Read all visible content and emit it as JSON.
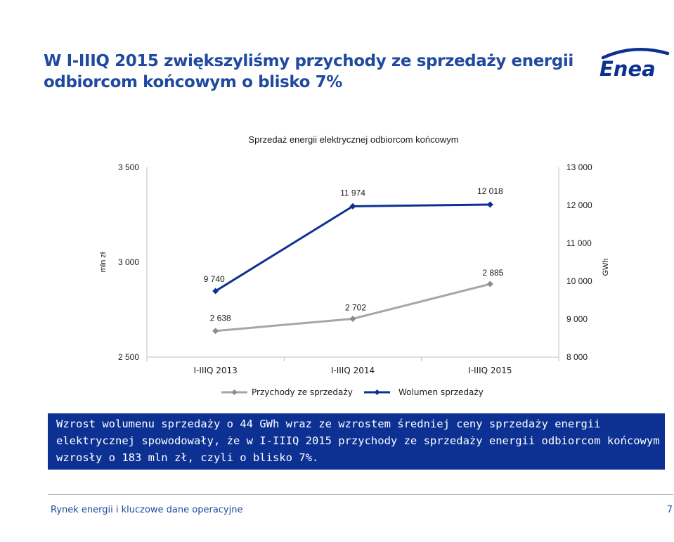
{
  "slide": {
    "title": "W I-IIIQ 2015 zwiększyliśmy przychody ze sprzedaży energii odbiorcom końcowym o blisko 7%",
    "logo_text": "Enea",
    "summary": "Wzrost wolumenu sprzedaży o 44 GWh wraz ze wzrostem średniej ceny sprzedaży energii elektrycznej spowodowały, że w I-IIIQ 2015 przychody ze sprzedaży energii odbiorcom końcowym wzrosły o 183 mln zł, czyli o blisko 7%.",
    "footer": "Rynek energii i kluczowe dane operacyjne",
    "page_number": "7"
  },
  "colors": {
    "title": "#1f4aa0",
    "summary_bg": "#0d3193",
    "przychody_series": "#a6a6a6",
    "wolumen_series": "#0d3193"
  },
  "chart_data": {
    "type": "line",
    "title": "Sprzedaż energii elektrycznej odbiorcom końcowym",
    "categories": [
      "I-IIIQ 2013",
      "I-IIIQ 2014",
      "I-IIIQ 2015"
    ],
    "ylabel": "mln zł",
    "y2label": "GWh",
    "ylim": [
      2500,
      3500
    ],
    "y2lim": [
      8000,
      13000
    ],
    "yticks": [
      "3 500",
      "3 000",
      "2 500"
    ],
    "y2ticks": [
      "13 000",
      "12 000",
      "11 000",
      "10 000",
      "9 000",
      "8 000"
    ],
    "legend_position": "bottom",
    "grid": false,
    "series": [
      {
        "name": "Przychody ze sprzedaży",
        "axis": "left",
        "values": [
          2638,
          2702,
          2885
        ],
        "labels": [
          "2 638",
          "2 702",
          "2 885"
        ]
      },
      {
        "name": "Wolumen sprzedaży",
        "axis": "right",
        "values": [
          9740,
          11974,
          12018
        ],
        "labels": [
          "9 740",
          "11 974",
          "12 018"
        ]
      }
    ]
  }
}
